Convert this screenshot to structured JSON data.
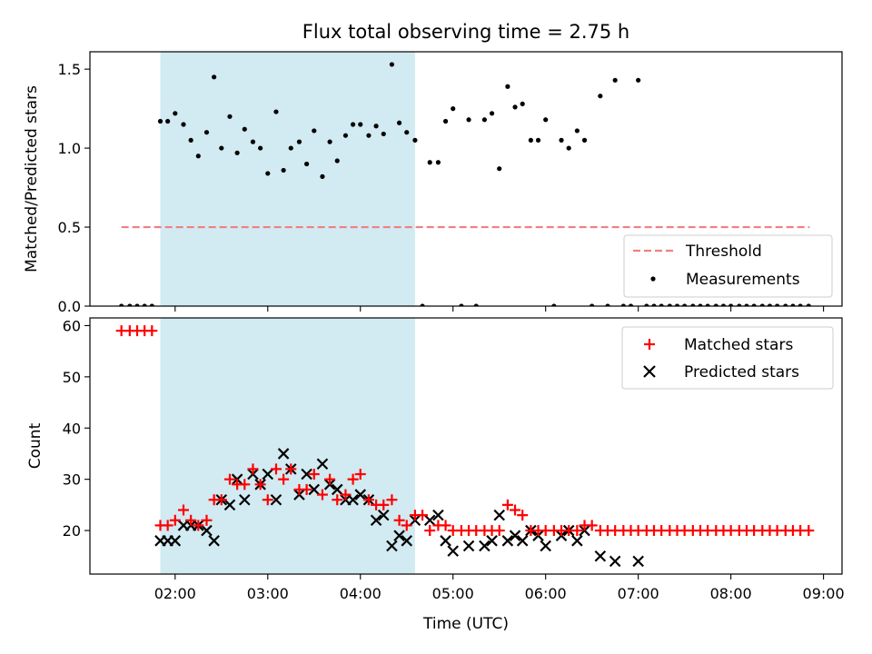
{
  "title": "Flux total observing time = 2.75 h",
  "colors": {
    "shade": "#add8e6",
    "threshold": "#f08080",
    "matched": "#ff0000",
    "predicted": "#000000",
    "measurements": "#000000"
  },
  "chart_data": [
    {
      "type": "scatter",
      "title": "Flux total observing time = 2.75 h",
      "xlabel": "",
      "ylabel": "Matched/Predicted stars",
      "x_unit": "hours UTC",
      "xlim": [
        1.08,
        9.2
      ],
      "ylim": [
        0,
        1.61
      ],
      "yticks": [
        0.0,
        0.5,
        1.0,
        1.5
      ],
      "ytick_labels": [
        "0.0",
        "0.5",
        "1.0",
        "1.5"
      ],
      "shaded_interval": [
        1.84,
        4.59
      ],
      "threshold": {
        "value": 0.5,
        "x": [
          1.42,
          8.85
        ],
        "style": "dashed"
      },
      "legend": {
        "position": "lower right",
        "entries": [
          "Threshold",
          "Measurements"
        ]
      },
      "series": [
        {
          "name": "Measurements",
          "marker": "dot",
          "x": [
            1.42,
            1.51,
            1.59,
            1.67,
            1.75,
            1.84,
            1.92,
            2.0,
            2.09,
            2.17,
            2.25,
            2.34,
            2.42,
            2.5,
            2.59,
            2.67,
            2.75,
            2.84,
            2.92,
            3.0,
            3.09,
            3.17,
            3.25,
            3.34,
            3.42,
            3.5,
            3.59,
            3.67,
            3.75,
            3.84,
            3.92,
            4.0,
            4.09,
            4.17,
            4.25,
            4.34,
            4.42,
            4.5,
            4.59,
            4.67,
            4.75,
            4.84,
            4.92,
            5.0,
            5.09,
            5.17,
            5.25,
            5.34,
            5.42,
            5.5,
            5.59,
            5.67,
            5.75,
            5.84,
            5.92,
            6.0,
            6.09,
            6.17,
            6.25,
            6.34,
            6.42,
            6.5,
            6.59,
            6.67,
            6.75,
            6.84,
            6.92,
            7.0,
            7.09,
            7.17,
            7.25,
            7.34,
            7.42,
            7.5,
            7.59,
            7.67,
            7.75,
            7.84,
            7.92,
            8.0,
            8.09,
            8.17,
            8.25,
            8.34,
            8.42,
            8.5,
            8.59,
            8.67,
            8.75,
            8.84
          ],
          "y": [
            0,
            0,
            0,
            0,
            0,
            1.17,
            1.17,
            1.22,
            1.15,
            1.05,
            0.95,
            1.1,
            1.45,
            1.0,
            1.2,
            0.97,
            1.12,
            1.04,
            1.0,
            0.84,
            1.23,
            0.86,
            1.0,
            1.04,
            0.9,
            1.11,
            0.82,
            1.04,
            0.92,
            1.08,
            1.15,
            1.15,
            1.08,
            1.14,
            1.09,
            1.53,
            1.16,
            1.1,
            1.05,
            0,
            0.91,
            0.91,
            1.17,
            1.25,
            0,
            1.18,
            0,
            1.18,
            1.22,
            0.87,
            1.39,
            1.26,
            1.28,
            1.05,
            1.05,
            1.18,
            0,
            1.05,
            1.0,
            1.11,
            1.05,
            0,
            1.33,
            0,
            1.43,
            0,
            0,
            1.43,
            0,
            0,
            0,
            0,
            0,
            0,
            0,
            0,
            0,
            0,
            0,
            0,
            0,
            0,
            0,
            0,
            0,
            0,
            0,
            0,
            0,
            0
          ]
        }
      ]
    },
    {
      "type": "scatter",
      "title": "",
      "xlabel": "Time (UTC)",
      "ylabel": "Count",
      "x_unit": "hours UTC",
      "xlim": [
        1.08,
        9.2
      ],
      "ylim": [
        11.5,
        61.5
      ],
      "yticks": [
        20,
        30,
        40,
        50,
        60
      ],
      "xticks": [
        2,
        3,
        4,
        5,
        6,
        7,
        8,
        9
      ],
      "xtick_labels": [
        "02:00",
        "03:00",
        "04:00",
        "05:00",
        "06:00",
        "07:00",
        "08:00",
        "09:00"
      ],
      "shaded_interval": [
        1.84,
        4.59
      ],
      "legend": {
        "position": "upper right",
        "entries": [
          "Matched stars",
          "Predicted stars"
        ]
      },
      "series": [
        {
          "name": "Matched stars",
          "marker": "plus",
          "x": [
            1.42,
            1.51,
            1.59,
            1.67,
            1.75,
            1.84,
            1.92,
            2.0,
            2.09,
            2.17,
            2.25,
            2.34,
            2.42,
            2.5,
            2.59,
            2.67,
            2.75,
            2.84,
            2.92,
            3.0,
            3.09,
            3.17,
            3.25,
            3.34,
            3.42,
            3.5,
            3.59,
            3.67,
            3.75,
            3.84,
            3.92,
            4.0,
            4.09,
            4.17,
            4.25,
            4.34,
            4.42,
            4.5,
            4.59,
            4.67,
            4.75,
            4.84,
            4.92,
            5.0,
            5.09,
            5.17,
            5.25,
            5.34,
            5.42,
            5.5,
            5.59,
            5.67,
            5.75,
            5.84,
            5.92,
            6.0,
            6.09,
            6.17,
            6.25,
            6.34,
            6.42,
            6.5,
            6.59,
            6.67,
            6.75,
            6.84,
            6.92,
            7.0,
            7.09,
            7.17,
            7.25,
            7.34,
            7.42,
            7.5,
            7.59,
            7.67,
            7.75,
            7.84,
            7.92,
            8.0,
            8.09,
            8.17,
            8.25,
            8.34,
            8.42,
            8.5,
            8.59,
            8.67,
            8.75,
            8.84
          ],
          "y": [
            59,
            59,
            59,
            59,
            59,
            21,
            21,
            22,
            24,
            22,
            21,
            22,
            26,
            26,
            30,
            29,
            29,
            32,
            29,
            26,
            32,
            30,
            32,
            28,
            28,
            31,
            27,
            30,
            26,
            27,
            30,
            31,
            26,
            25,
            25,
            26,
            22,
            21,
            23,
            23,
            20,
            21,
            21,
            20,
            20,
            20,
            20,
            20,
            20,
            20,
            25,
            24,
            23,
            20,
            20,
            20,
            20,
            20,
            20,
            20,
            21,
            21,
            20,
            20,
            20,
            20,
            20,
            20,
            20,
            20,
            20,
            20,
            20,
            20,
            20,
            20,
            20,
            20,
            20,
            20,
            20,
            20,
            20,
            20,
            20,
            20,
            20,
            20,
            20,
            20
          ]
        },
        {
          "name": "Predicted stars",
          "marker": "x",
          "x": [
            1.84,
            1.92,
            2.0,
            2.09,
            2.17,
            2.25,
            2.34,
            2.42,
            2.5,
            2.59,
            2.67,
            2.75,
            2.84,
            2.92,
            3.0,
            3.09,
            3.17,
            3.25,
            3.34,
            3.42,
            3.5,
            3.59,
            3.67,
            3.75,
            3.84,
            3.92,
            4.0,
            4.09,
            4.17,
            4.25,
            4.34,
            4.42,
            4.5,
            4.59,
            4.75,
            4.84,
            4.92,
            5.0,
            5.17,
            5.34,
            5.42,
            5.5,
            5.59,
            5.67,
            5.75,
            5.84,
            5.92,
            6.0,
            6.17,
            6.25,
            6.34,
            6.42,
            6.59,
            6.75,
            7.0
          ],
          "y": [
            18,
            18,
            18,
            21,
            21,
            21,
            20,
            18,
            26,
            25,
            30,
            26,
            31,
            29,
            31,
            26,
            35,
            32,
            27,
            31,
            28,
            33,
            29,
            28,
            26,
            26,
            27,
            26,
            22,
            23,
            17,
            19,
            18,
            22,
            22,
            23,
            18,
            16,
            17,
            17,
            18,
            23,
            18,
            19,
            18,
            20,
            19,
            17,
            19,
            20,
            18,
            20,
            15,
            14,
            14
          ]
        }
      ]
    }
  ]
}
